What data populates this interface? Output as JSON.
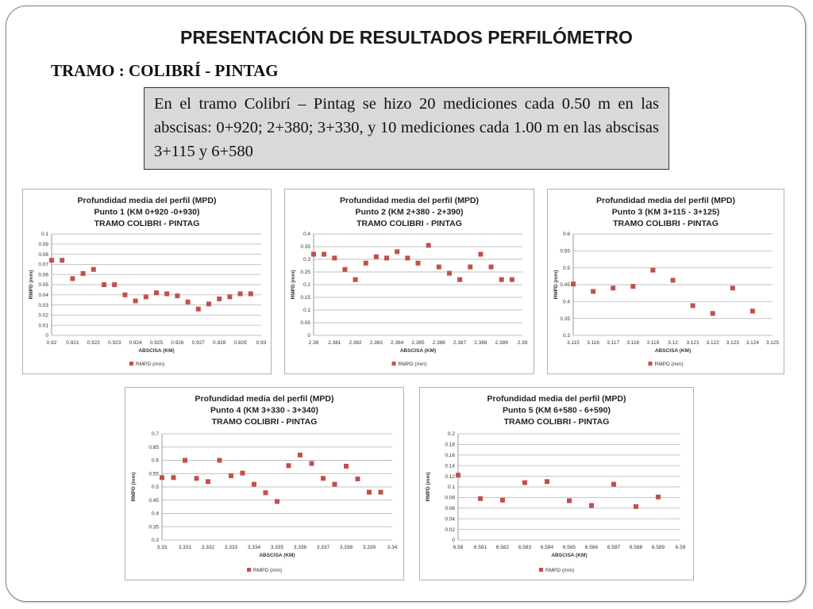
{
  "slide": {
    "title": "PRESENTACIÓN DE RESULTADOS PERFILÓMETRO",
    "section": "TRAMO : COLIBRÍ - PINTAG",
    "description": "En el tramo Colibrí – Pintag se hizo 20 mediciones cada 0.50 m en las abscisas: 0+920; 2+380; 3+330, y 10 mediciones cada 1.00 m en las abscisas 3+115 y 6+580"
  },
  "colors": {
    "marker": "#c0504d",
    "grid": "#bfbfbf",
    "frame": "#b0b0b0"
  },
  "chart_data": [
    {
      "type": "scatter",
      "title": [
        "Profundidad media del perfil (MPD)",
        "Punto 1  (KM 0+920 -0+930)",
        "TRAMO COLIBRI - PINTAG"
      ],
      "xlabel": "ABSCISA (KM)",
      "ylabel": "RMPD (mm)",
      "xlim": [
        0.92,
        0.93
      ],
      "ylim": [
        0,
        0.1
      ],
      "xticks": [
        "0.92",
        "0.921",
        "0.922",
        "0.923",
        "0.924",
        "0.925",
        "0.926",
        "0.927",
        "0.928",
        "0.929",
        "0.93"
      ],
      "yticks": [
        "0",
        "0.01",
        "0.02",
        "0.03",
        "0.04",
        "0.05",
        "0.06",
        "0.07",
        "0.08",
        "0.09",
        "0.1"
      ],
      "grid": true,
      "legend": "bottom",
      "series": [
        {
          "name": "RMPD (mm)",
          "x": [
            0.92,
            0.9205,
            0.921,
            0.9215,
            0.922,
            0.9225,
            0.923,
            0.9235,
            0.924,
            0.9245,
            0.925,
            0.9255,
            0.926,
            0.9265,
            0.927,
            0.9275,
            0.928,
            0.9285,
            0.929,
            0.9295
          ],
          "y": [
            0.074,
            0.074,
            0.056,
            0.061,
            0.065,
            0.05,
            0.05,
            0.04,
            0.034,
            0.038,
            0.042,
            0.041,
            0.039,
            0.033,
            0.026,
            0.031,
            0.036,
            0.038,
            0.041,
            0.041
          ]
        }
      ]
    },
    {
      "type": "scatter",
      "title": [
        "Profundidad media del perfil (MPD)",
        "Punto 2 (KM 2+380 - 2+390)",
        "TRAMO COLIBRI - PINTAG"
      ],
      "xlabel": "ABSCISA (KM)",
      "ylabel": "RMPD (mm)",
      "xlim": [
        2.38,
        2.39
      ],
      "ylim": [
        0,
        0.4
      ],
      "xticks": [
        "2.38",
        "2.381",
        "2.382",
        "2.383",
        "2.384",
        "2.385",
        "2.386",
        "2.387",
        "2.388",
        "2.389",
        "2.39"
      ],
      "yticks": [
        "0",
        "0.05",
        "0.1",
        "0.15",
        "0.2",
        "0.25",
        "0.3",
        "0.35",
        "0.4"
      ],
      "grid": true,
      "legend": "bottom",
      "series": [
        {
          "name": "RMPD (mm)",
          "x": [
            2.38,
            2.3805,
            2.381,
            2.3815,
            2.382,
            2.3825,
            2.383,
            2.3835,
            2.384,
            2.3845,
            2.385,
            2.3855,
            2.386,
            2.3865,
            2.387,
            2.3875,
            2.388,
            2.3885,
            2.389,
            2.3895
          ],
          "y": [
            0.32,
            0.32,
            0.305,
            0.26,
            0.22,
            0.285,
            0.31,
            0.305,
            0.33,
            0.305,
            0.285,
            0.355,
            0.27,
            0.245,
            0.22,
            0.27,
            0.32,
            0.27,
            0.22,
            0.22
          ]
        }
      ]
    },
    {
      "type": "scatter",
      "title": [
        "Profundidad media del perfil (MPD)",
        "Punto 3 (KM 3+115 - 3+125)",
        "TRAMO COLIBRI - PINTAG"
      ],
      "xlabel": "ABSCISA (KM)",
      "ylabel": "RMPD (mm)",
      "xlim": [
        3.115,
        3.125
      ],
      "ylim": [
        0.3,
        0.6
      ],
      "xticks": [
        "3.115",
        "3.116",
        "3.117",
        "3.118",
        "3.119",
        "3.12",
        "3.121",
        "3.122",
        "3.123",
        "3.124",
        "3.125"
      ],
      "yticks": [
        "0.3",
        "0.35",
        "0.4",
        "0.45",
        "0.5",
        "0.55",
        "0.6"
      ],
      "grid": true,
      "legend": "bottom",
      "series": [
        {
          "name": "RMPD (mm)",
          "x": [
            3.115,
            3.116,
            3.117,
            3.118,
            3.119,
            3.12,
            3.121,
            3.122,
            3.123,
            3.124
          ],
          "y": [
            0.452,
            0.43,
            0.44,
            0.445,
            0.493,
            0.463,
            0.388,
            0.365,
            0.44,
            0.372
          ]
        }
      ]
    },
    {
      "type": "scatter",
      "title": [
        "Profundidad media del perfil (MPD)",
        "Punto 4 (KM 3+330 - 3+340)",
        "TRAMO COLIBRI - PINTAG"
      ],
      "xlabel": "ABSCISA (KM)",
      "ylabel": "RMPD (mm)",
      "xlim": [
        3.33,
        3.34
      ],
      "ylim": [
        0.3,
        0.7
      ],
      "xticks": [
        "3.33",
        "3.331",
        "3.332",
        "3.333",
        "3.334",
        "3.335",
        "3.336",
        "3.337",
        "3.338",
        "3.339",
        "3.34"
      ],
      "yticks": [
        "0.3",
        "0.35",
        "0.4",
        "0.45",
        "0.5",
        "0.55",
        "0.6",
        "0.65",
        "0.7"
      ],
      "grid": true,
      "legend": "bottom",
      "series": [
        {
          "name": "RMPD (mm)",
          "x": [
            3.33,
            3.3305,
            3.331,
            3.3315,
            3.332,
            3.3325,
            3.333,
            3.3335,
            3.334,
            3.3345,
            3.335,
            3.3355,
            3.336,
            3.3365,
            3.337,
            3.3375,
            3.338,
            3.3385,
            3.339,
            3.3395
          ],
          "y": [
            0.535,
            0.535,
            0.6,
            0.532,
            0.52,
            0.6,
            0.542,
            0.552,
            0.51,
            0.478,
            0.445,
            0.58,
            0.62,
            0.588,
            0.532,
            0.51,
            0.578,
            0.53,
            0.48,
            0.48
          ]
        }
      ]
    },
    {
      "type": "scatter",
      "title": [
        "Profundidad media del perfil (MPD)",
        "Punto 5 (KM 6+580 - 6+590)",
        "TRAMO COLIBRI - PINTAG"
      ],
      "xlabel": "ABSCISA (KM)",
      "ylabel": "RMPD (mm)",
      "xlim": [
        6.58,
        6.59
      ],
      "ylim": [
        0,
        0.2
      ],
      "xticks": [
        "6.58",
        "6.581",
        "6.582",
        "6.583",
        "6.584",
        "6.585",
        "6.586",
        "6.587",
        "6.588",
        "6.589",
        "6.59"
      ],
      "yticks": [
        "0",
        "0.02",
        "0.04",
        "0.06",
        "0.08",
        "0.1",
        "0.12",
        "0.14",
        "0.16",
        "0.18",
        "0.2"
      ],
      "grid": true,
      "legend": "bottom",
      "series": [
        {
          "name": "RMPD (mm)",
          "x": [
            6.58,
            6.581,
            6.582,
            6.583,
            6.584,
            6.585,
            6.586,
            6.587,
            6.588,
            6.589
          ],
          "y": [
            0.122,
            0.078,
            0.075,
            0.108,
            0.11,
            0.074,
            0.065,
            0.105,
            0.063,
            0.081
          ]
        }
      ]
    }
  ]
}
